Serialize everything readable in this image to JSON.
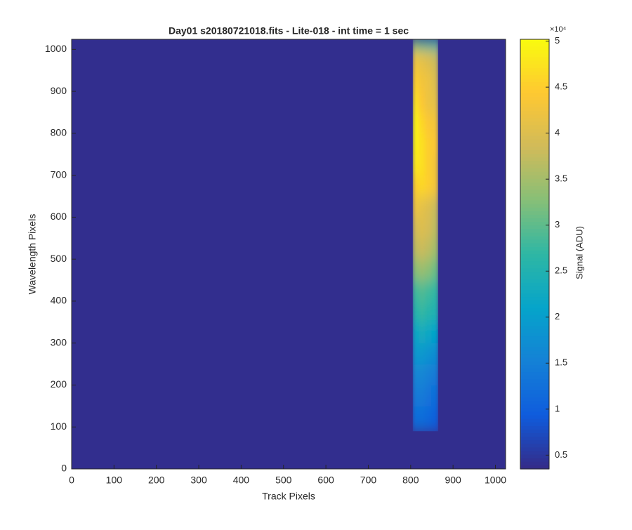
{
  "chart_data": {
    "type": "heatmap",
    "title": "Day01  s20180721018.fits - Lite-018 - int time = 1 sec",
    "xlabel": "Track Pixels",
    "ylabel": "Wavelength Pixels",
    "colorbar_label": "Signal (ADU)",
    "colorbar_exponent": "×10⁴",
    "colormap": "parula",
    "xlim": [
      0,
      1024
    ],
    "ylim": [
      0,
      1024
    ],
    "xticks": [
      0,
      100,
      200,
      300,
      400,
      500,
      600,
      700,
      800,
      900,
      1000
    ],
    "yticks": [
      0,
      100,
      200,
      300,
      400,
      500,
      600,
      700,
      800,
      900,
      1000
    ],
    "clim": [
      3500,
      50200
    ],
    "cticks": [
      {
        "value": 5000,
        "label": "0.5"
      },
      {
        "value": 10000,
        "label": "1"
      },
      {
        "value": 15000,
        "label": "1.5"
      },
      {
        "value": 20000,
        "label": "2"
      },
      {
        "value": 25000,
        "label": "2.5"
      },
      {
        "value": 30000,
        "label": "3"
      },
      {
        "value": 35000,
        "label": "3.5"
      },
      {
        "value": 40000,
        "label": "4"
      },
      {
        "value": 45000,
        "label": "4.5"
      },
      {
        "value": 50000,
        "label": "5"
      }
    ],
    "background": 4000,
    "xbins": [
      805,
      820,
      835,
      850,
      865
    ],
    "ybins": [
      90,
      150,
      200,
      250,
      300,
      350,
      400,
      450,
      500,
      550,
      600,
      650,
      700,
      750,
      800,
      850,
      900,
      950,
      1000,
      1024
    ],
    "values": [
      [
        12000,
        12000,
        11000,
        10000
      ],
      [
        14000,
        14000,
        13000,
        12000
      ],
      [
        16000,
        16000,
        15000,
        14000
      ],
      [
        19000,
        19000,
        18000,
        17000
      ],
      [
        22000,
        23000,
        22000,
        21000
      ],
      [
        26000,
        27000,
        26000,
        25000
      ],
      [
        28000,
        29000,
        28000,
        27000
      ],
      [
        33000,
        34000,
        33000,
        31000
      ],
      [
        37000,
        38000,
        37000,
        35000
      ],
      [
        39000,
        40000,
        39000,
        37000
      ],
      [
        42000,
        41000,
        40000,
        38000
      ],
      [
        45000,
        46000,
        45000,
        43000
      ],
      [
        48000,
        47000,
        45000,
        43000
      ],
      [
        49000,
        47000,
        45000,
        44000
      ],
      [
        49000,
        46000,
        44000,
        43000
      ],
      [
        47000,
        44000,
        42000,
        41000
      ],
      [
        45000,
        43000,
        42000,
        40000
      ],
      [
        42000,
        41000,
        40000,
        38000
      ],
      [
        30000,
        28000,
        27000,
        26000
      ]
    ]
  }
}
